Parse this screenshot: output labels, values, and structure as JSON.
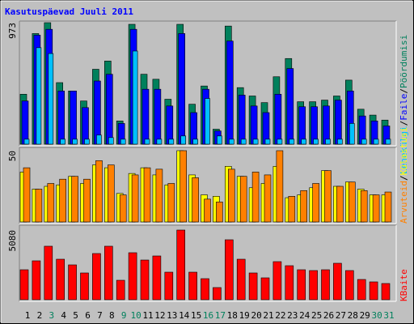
{
  "chart_data": [
    {
      "type": "bar",
      "title": "Kasutuspäevad Juuli 2011",
      "ylim": [
        0,
        973
      ],
      "yticks": [
        973
      ],
      "legend_separator": "/",
      "series": [
        {
          "name": "Pöördumisi",
          "color": "#00805c",
          "values": [
            400,
            886,
            973,
            493,
            426,
            346,
            600,
            666,
            186,
            960,
            560,
            520,
            360,
            960,
            320,
            466,
            120,
            946,
            453,
            386,
            333,
            540,
            686,
            340,
            340,
            353,
            386,
            513,
            280,
            233,
            193
          ]
        },
        {
          "name": "Faile",
          "color": "#0000ff",
          "values": [
            346,
            873,
            920,
            426,
            426,
            293,
            506,
            560,
            166,
            920,
            440,
            440,
            306,
            886,
            253,
            440,
            106,
            826,
            393,
            306,
            253,
            400,
            606,
            300,
            300,
            306,
            353,
            426,
            226,
            186,
            146
          ]
        },
        {
          "name": "Lehekülgi",
          "color": "#00c0ff",
          "values": [
            40,
            773,
            726,
            40,
            40,
            40,
            73,
            53,
            40,
            746,
            40,
            40,
            40,
            66,
            40,
            366,
            66,
            40,
            40,
            40,
            40,
            40,
            40,
            40,
            40,
            40,
            40,
            166,
            40,
            40,
            40
          ]
        }
      ]
    },
    {
      "type": "bar",
      "ylim": [
        0,
        50
      ],
      "yticks": [
        50
      ],
      "legend_separator": "/",
      "series": [
        {
          "name": "Külastusi",
          "color": "#ffff00",
          "values": [
            35,
            23,
            25,
            26,
            32,
            27,
            40,
            38,
            20,
            34,
            38,
            33,
            26,
            50,
            33,
            19,
            18,
            39,
            32,
            24,
            27,
            39,
            17,
            19,
            24,
            36,
            25,
            28,
            23,
            19,
            19
          ]
        },
        {
          "name": "Arvuteid",
          "color": "#ff8000",
          "values": [
            38,
            23,
            27,
            30,
            32,
            30,
            43,
            40,
            19,
            33,
            38,
            37,
            27,
            50,
            31,
            16,
            14,
            37,
            32,
            35,
            33,
            50,
            18,
            22,
            27,
            36,
            25,
            28,
            22,
            19,
            21
          ]
        }
      ]
    },
    {
      "type": "bar",
      "ylim": [
        0,
        5080
      ],
      "yticks": [
        5080
      ],
      "categories": [
        "1",
        "2",
        "3",
        "4",
        "5",
        "6",
        "7",
        "8",
        "9",
        "10",
        "11",
        "12",
        "13",
        "14",
        "15",
        "16",
        "17",
        "18",
        "19",
        "20",
        "21",
        "22",
        "23",
        "24",
        "25",
        "26",
        "27",
        "28",
        "29",
        "30",
        "31"
      ],
      "category_colors": [
        "#000000",
        "#000000",
        "#00805c",
        "#000000",
        "#000000",
        "#000000",
        "#000000",
        "#000000",
        "#00805c",
        "#00805c",
        "#000000",
        "#000000",
        "#000000",
        "#000000",
        "#000000",
        "#00805c",
        "#00805c",
        "#000000",
        "#000000",
        "#000000",
        "#000000",
        "#000000",
        "#000000",
        "#000000",
        "#000000",
        "#000000",
        "#000000",
        "#000000",
        "#000000",
        "#00805c",
        "#00805c"
      ],
      "series": [
        {
          "name": "KBaite",
          "color": "#ff0000",
          "values": [
            2185,
            2835,
            3900,
            2953,
            2540,
            1950,
            3367,
            3900,
            1417,
            3426,
            2894,
            3190,
            2008,
            5080,
            2008,
            1535,
            886,
            4371,
            2953,
            1950,
            1595,
            2776,
            2480,
            2185,
            2126,
            2185,
            2658,
            2126,
            1476,
            1300,
            1181
          ]
        }
      ]
    }
  ]
}
